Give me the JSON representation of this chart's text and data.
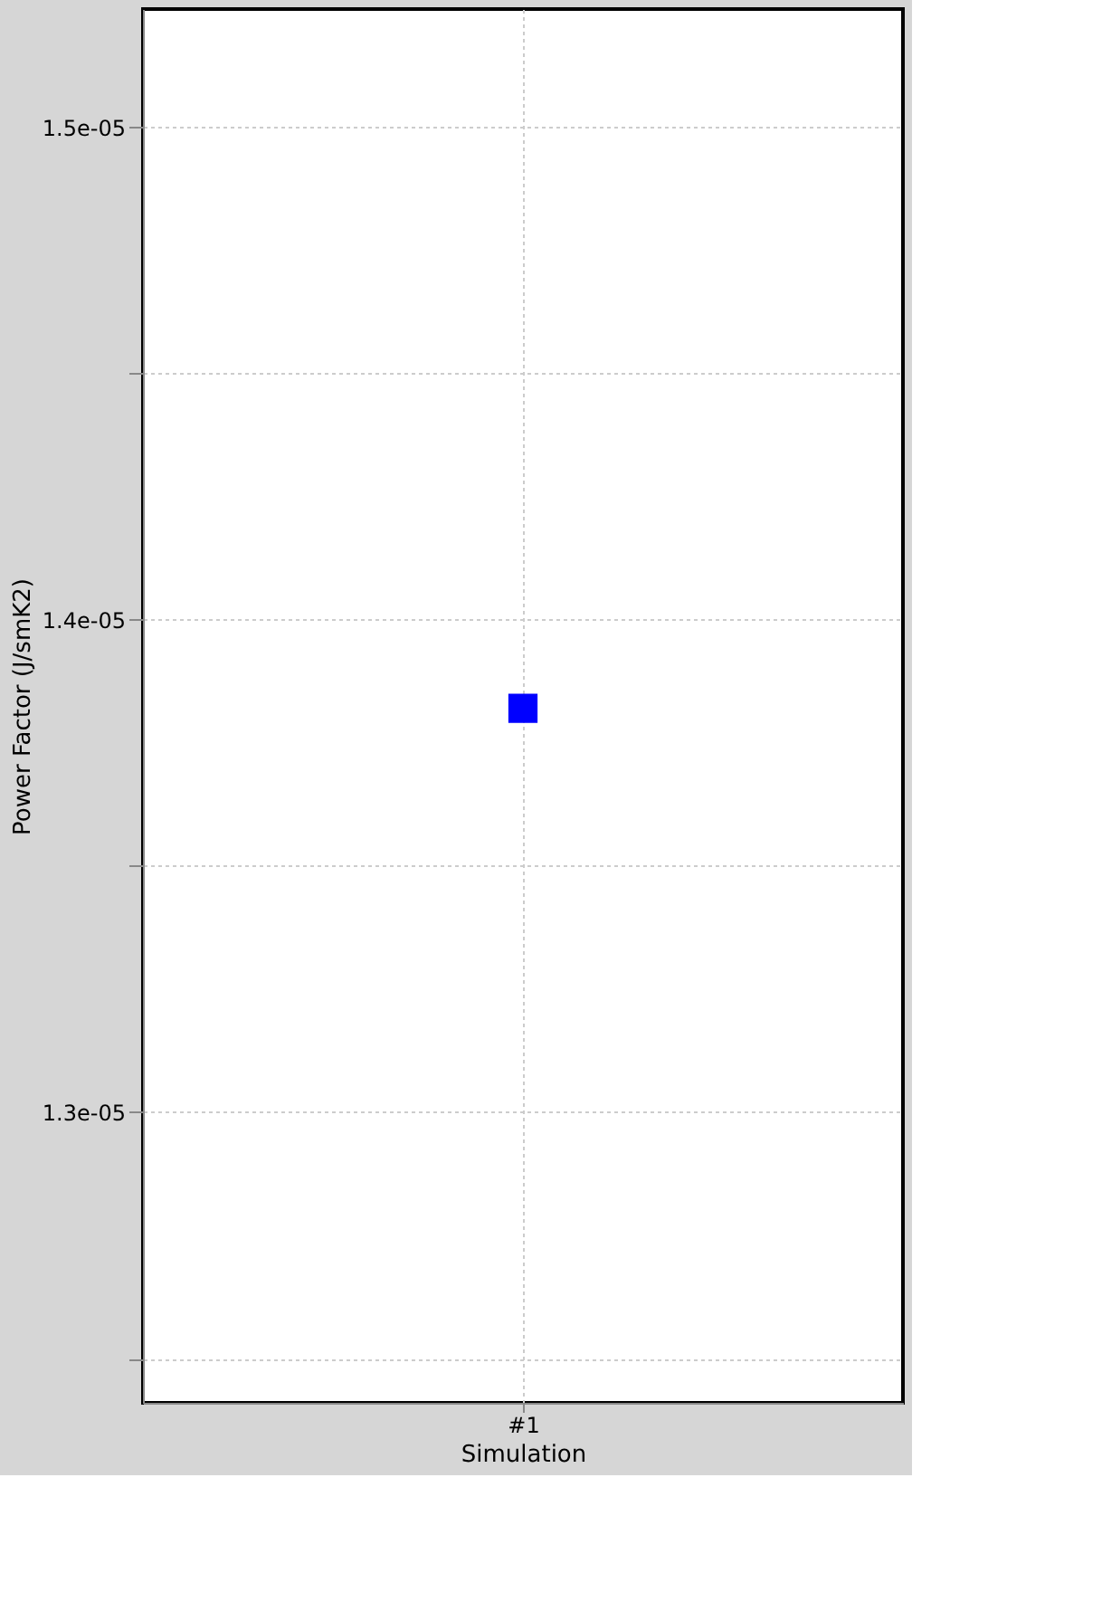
{
  "chart_data": {
    "type": "scatter",
    "xlabel": "Simulation",
    "ylabel": "Power Factor (J/smK2)",
    "categories": [
      "#1"
    ],
    "series": [
      {
        "color": "#0000ff",
        "values": [
          1.382e-05
        ]
      }
    ],
    "ylim": [
      1.241e-05,
      1.524e-05
    ],
    "yticks": [
      {
        "value": 1.25e-05,
        "label": null
      },
      {
        "value": 1.3e-05,
        "label": "1.3e-05"
      },
      {
        "value": 1.35e-05,
        "label": null
      },
      {
        "value": 1.4e-05,
        "label": "1.4e-05"
      },
      {
        "value": 1.45e-05,
        "label": null
      },
      {
        "value": 1.5e-05,
        "label": "1.5e-05"
      }
    ],
    "grid": true,
    "marker": "square",
    "legend": false
  }
}
